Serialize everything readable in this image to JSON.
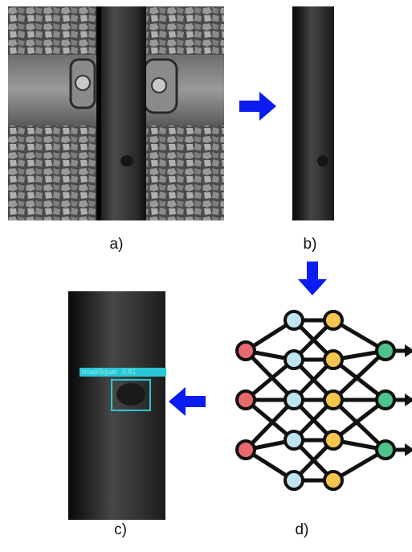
{
  "captions": {
    "a": "a)",
    "b": "b)",
    "c": "c)",
    "d": "d)"
  },
  "detection": {
    "label": "smallSquat",
    "score": "0.81",
    "box_color": "#29c7d6"
  },
  "colors": {
    "arrow": "#0a1cf0",
    "node_red": "#e8696e",
    "node_blue": "#bfe4f2",
    "node_yellow": "#f6c54e",
    "node_green": "#4fc48a",
    "edge": "#111111"
  },
  "icons": {
    "arrow": "arrow-right-icon",
    "network": "neural-network-icon"
  }
}
